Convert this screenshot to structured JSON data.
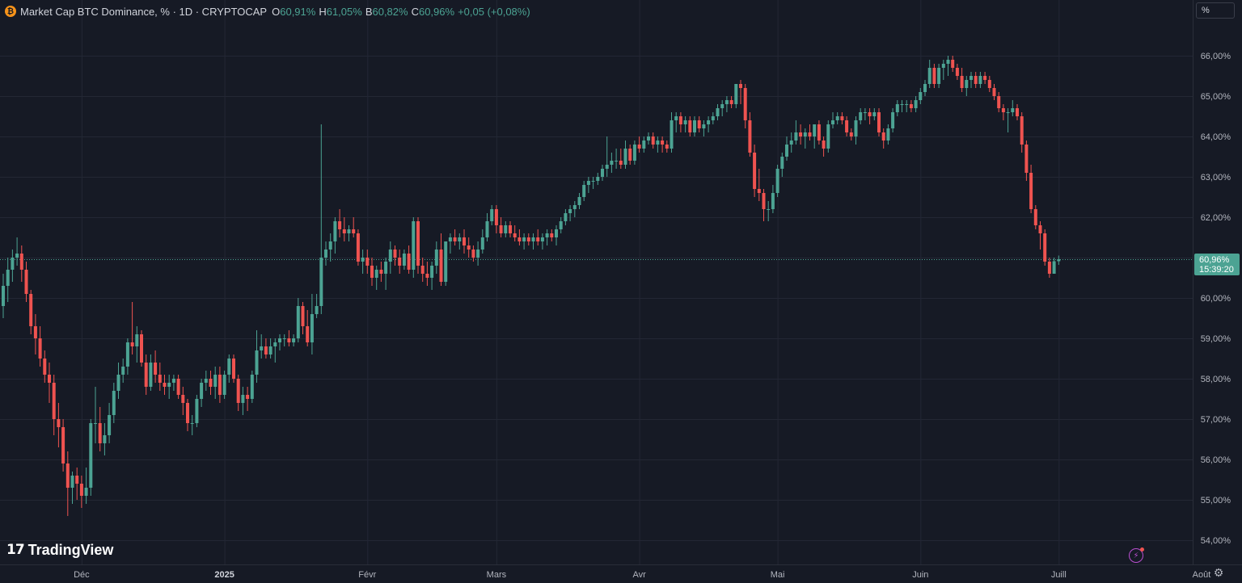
{
  "legend": {
    "title": "Market Cap BTC Dominance, % · 1D · CRYPTOCAP",
    "open_label": "O",
    "open": "60,91%",
    "high_label": "H",
    "high": "61,05%",
    "low_label": "B",
    "low": "60,82%",
    "close_label": "C",
    "close": "60,96%",
    "change": "+0,05 (+0,08%)"
  },
  "scale_button": "%",
  "logo": {
    "mark": "17",
    "name": "TradingView"
  },
  "price_label": {
    "price": "60,96%",
    "countdown": "15:39:20"
  },
  "icons": {
    "coin": "bitcoin-icon",
    "alert": "lightning-icon",
    "settings": "gear-icon",
    "logo": "tradingview-logo-icon"
  },
  "colors": {
    "up": "#4ca393",
    "down": "#ef5350",
    "background": "#161a25",
    "grid": "#232734",
    "axis_text": "#b2b5be"
  },
  "chart_data": {
    "type": "candlestick",
    "title": "Market Cap BTC Dominance, %",
    "timeframe": "1D",
    "y_tick_labels": [
      "54,00%",
      "55,00%",
      "56,00%",
      "57,00%",
      "58,00%",
      "59,00%",
      "60,00%",
      "61,00%",
      "62,00%",
      "63,00%",
      "64,00%",
      "65,00%",
      "66,00%"
    ],
    "x_tick_labels": [
      "Déc",
      "2025",
      "Févr",
      "Mars",
      "Avr",
      "Mai",
      "Juin",
      "Juill",
      "Août"
    ],
    "bold_x_tick": "2025",
    "ylim": [
      53.7,
      66.9
    ],
    "x_start": "2024-11-14",
    "grid": true,
    "last_price": 60.96,
    "ohlc": [
      [
        59.8,
        60.6,
        59.5,
        60.3
      ],
      [
        60.3,
        61.0,
        59.9,
        60.7
      ],
      [
        60.7,
        61.2,
        60.4,
        61.0
      ],
      [
        61.0,
        61.5,
        60.8,
        61.1
      ],
      [
        61.1,
        61.3,
        60.4,
        60.7
      ],
      [
        60.7,
        60.9,
        59.9,
        60.1
      ],
      [
        60.1,
        60.2,
        59.1,
        59.3
      ],
      [
        59.3,
        59.6,
        58.6,
        59.0
      ],
      [
        59.0,
        59.3,
        58.3,
        58.5
      ],
      [
        58.5,
        58.7,
        57.9,
        58.1
      ],
      [
        58.1,
        58.4,
        57.4,
        57.9
      ],
      [
        57.9,
        58.1,
        56.6,
        57.0
      ],
      [
        57.0,
        57.4,
        56.3,
        56.8
      ],
      [
        56.8,
        57.0,
        55.7,
        55.9
      ],
      [
        55.9,
        56.2,
        54.6,
        55.3
      ],
      [
        55.3,
        55.7,
        54.9,
        55.6
      ],
      [
        55.6,
        55.8,
        55.0,
        55.4
      ],
      [
        55.4,
        55.6,
        54.8,
        55.1
      ],
      [
        55.1,
        55.8,
        54.9,
        55.3
      ],
      [
        55.3,
        57.0,
        55.1,
        56.9
      ],
      [
        56.9,
        57.8,
        56.4,
        56.9
      ],
      [
        56.9,
        57.3,
        56.2,
        56.4
      ],
      [
        56.4,
        56.9,
        56.1,
        56.6
      ],
      [
        56.6,
        57.4,
        56.4,
        57.1
      ],
      [
        57.1,
        57.9,
        56.9,
        57.7
      ],
      [
        57.7,
        58.4,
        57.5,
        58.1
      ],
      [
        58.1,
        58.5,
        57.9,
        58.3
      ],
      [
        58.3,
        59.0,
        58.1,
        58.9
      ],
      [
        58.9,
        59.9,
        58.6,
        58.8
      ],
      [
        58.8,
        59.3,
        58.4,
        59.1
      ],
      [
        59.1,
        59.2,
        58.3,
        58.4
      ],
      [
        58.4,
        58.6,
        57.6,
        57.8
      ],
      [
        57.8,
        58.6,
        57.7,
        58.4
      ],
      [
        58.4,
        58.7,
        57.9,
        58.1
      ],
      [
        58.1,
        58.4,
        57.7,
        57.9
      ],
      [
        57.9,
        58.1,
        57.6,
        57.8
      ],
      [
        57.8,
        58.1,
        57.5,
        57.9
      ],
      [
        57.9,
        58.1,
        57.7,
        58.0
      ],
      [
        58.0,
        58.1,
        57.5,
        57.6
      ],
      [
        57.6,
        57.8,
        57.1,
        57.4
      ],
      [
        57.4,
        57.5,
        56.7,
        56.9
      ],
      [
        56.9,
        57.1,
        56.6,
        56.9
      ],
      [
        56.9,
        57.6,
        56.8,
        57.5
      ],
      [
        57.5,
        58.0,
        57.3,
        57.9
      ],
      [
        57.9,
        58.2,
        57.7,
        58.0
      ],
      [
        58.0,
        58.2,
        57.6,
        57.8
      ],
      [
        57.8,
        58.3,
        57.5,
        58.1
      ],
      [
        58.1,
        58.3,
        57.4,
        57.6
      ],
      [
        57.6,
        58.2,
        57.5,
        58.1
      ],
      [
        58.1,
        58.6,
        57.9,
        58.5
      ],
      [
        58.5,
        58.6,
        57.9,
        58.0
      ],
      [
        58.0,
        58.1,
        57.2,
        57.4
      ],
      [
        57.4,
        57.8,
        57.1,
        57.6
      ],
      [
        57.6,
        57.8,
        57.2,
        57.5
      ],
      [
        57.5,
        58.2,
        57.4,
        58.1
      ],
      [
        58.1,
        59.2,
        57.9,
        58.7
      ],
      [
        58.7,
        59.1,
        58.5,
        58.8
      ],
      [
        58.8,
        59.0,
        58.5,
        58.6
      ],
      [
        58.6,
        59.0,
        58.5,
        58.8
      ],
      [
        58.8,
        59.0,
        58.4,
        58.9
      ],
      [
        58.9,
        59.1,
        58.7,
        59.0
      ],
      [
        59.0,
        59.1,
        58.8,
        59.0
      ],
      [
        59.0,
        59.2,
        58.8,
        58.9
      ],
      [
        58.9,
        59.1,
        58.8,
        59.0
      ],
      [
        59.0,
        60.0,
        58.9,
        59.8
      ],
      [
        59.8,
        59.9,
        59.1,
        59.3
      ],
      [
        59.3,
        59.7,
        58.8,
        58.9
      ],
      [
        58.9,
        60.1,
        58.6,
        59.6
      ],
      [
        59.6,
        60.1,
        59.5,
        59.8
      ],
      [
        59.8,
        64.3,
        59.6,
        61.0
      ],
      [
        61.0,
        61.4,
        60.8,
        61.2
      ],
      [
        61.2,
        61.6,
        60.9,
        61.4
      ],
      [
        61.4,
        62.0,
        61.1,
        61.9
      ],
      [
        61.9,
        62.2,
        61.5,
        61.7
      ],
      [
        61.7,
        62.0,
        61.4,
        61.6
      ],
      [
        61.6,
        61.8,
        61.4,
        61.7
      ],
      [
        61.7,
        62.0,
        61.5,
        61.6
      ],
      [
        61.6,
        61.7,
        60.8,
        60.9
      ],
      [
        60.9,
        61.2,
        60.6,
        61.0
      ],
      [
        61.0,
        61.2,
        60.6,
        60.8
      ],
      [
        60.8,
        61.0,
        60.3,
        60.5
      ],
      [
        60.5,
        60.8,
        60.2,
        60.7
      ],
      [
        60.7,
        60.9,
        60.4,
        60.6
      ],
      [
        60.6,
        61.0,
        60.2,
        60.9
      ],
      [
        60.9,
        61.4,
        60.6,
        61.2
      ],
      [
        61.2,
        61.3,
        60.8,
        61.0
      ],
      [
        61.0,
        61.2,
        60.6,
        60.8
      ],
      [
        60.8,
        61.2,
        60.7,
        61.1
      ],
      [
        61.1,
        61.3,
        60.6,
        60.7
      ],
      [
        60.7,
        62.0,
        60.5,
        61.9
      ],
      [
        61.9,
        62.0,
        60.6,
        60.8
      ],
      [
        60.8,
        61.0,
        60.4,
        60.6
      ],
      [
        60.6,
        60.9,
        60.3,
        60.5
      ],
      [
        60.5,
        60.9,
        60.2,
        60.8
      ],
      [
        60.8,
        61.4,
        60.6,
        61.2
      ],
      [
        61.2,
        61.6,
        60.3,
        60.4
      ],
      [
        60.4,
        61.4,
        60.3,
        61.4
      ],
      [
        61.4,
        61.6,
        61.1,
        61.5
      ],
      [
        61.5,
        61.7,
        61.3,
        61.4
      ],
      [
        61.4,
        61.6,
        61.2,
        61.5
      ],
      [
        61.5,
        61.7,
        61.1,
        61.3
      ],
      [
        61.3,
        61.5,
        61.0,
        61.2
      ],
      [
        61.2,
        61.3,
        60.9,
        61.0
      ],
      [
        61.0,
        61.4,
        60.8,
        61.2
      ],
      [
        61.2,
        61.7,
        61.1,
        61.5
      ],
      [
        61.5,
        62.1,
        61.4,
        61.9
      ],
      [
        61.9,
        62.3,
        61.8,
        62.2
      ],
      [
        62.2,
        62.3,
        61.6,
        61.8
      ],
      [
        61.8,
        62.0,
        61.5,
        61.6
      ],
      [
        61.6,
        61.9,
        61.5,
        61.8
      ],
      [
        61.8,
        61.9,
        61.5,
        61.6
      ],
      [
        61.6,
        61.8,
        61.4,
        61.5
      ],
      [
        61.5,
        61.7,
        61.3,
        61.4
      ],
      [
        61.4,
        61.6,
        61.2,
        61.5
      ],
      [
        61.5,
        61.6,
        61.3,
        61.4
      ],
      [
        61.4,
        61.6,
        61.2,
        61.5
      ],
      [
        61.5,
        61.7,
        61.3,
        61.4
      ],
      [
        61.4,
        61.6,
        61.2,
        61.5
      ],
      [
        61.5,
        61.7,
        61.3,
        61.6
      ],
      [
        61.6,
        61.7,
        61.4,
        61.5
      ],
      [
        61.5,
        61.8,
        61.3,
        61.7
      ],
      [
        61.7,
        62.0,
        61.6,
        61.9
      ],
      [
        61.9,
        62.2,
        61.8,
        62.1
      ],
      [
        62.1,
        62.3,
        61.9,
        62.2
      ],
      [
        62.2,
        62.4,
        62.0,
        62.3
      ],
      [
        62.3,
        62.6,
        62.2,
        62.5
      ],
      [
        62.5,
        62.9,
        62.4,
        62.8
      ],
      [
        62.8,
        63.0,
        62.6,
        62.9
      ],
      [
        62.9,
        63.0,
        62.7,
        62.9
      ],
      [
        62.9,
        63.1,
        62.8,
        63.0
      ],
      [
        63.0,
        63.3,
        62.9,
        63.2
      ],
      [
        63.2,
        64.0,
        63.0,
        63.3
      ],
      [
        63.3,
        63.6,
        63.1,
        63.4
      ],
      [
        63.4,
        63.7,
        63.2,
        63.4
      ],
      [
        63.4,
        63.7,
        63.2,
        63.3
      ],
      [
        63.3,
        63.9,
        63.2,
        63.7
      ],
      [
        63.7,
        63.8,
        63.3,
        63.4
      ],
      [
        63.4,
        63.9,
        63.3,
        63.8
      ],
      [
        63.8,
        64.0,
        63.6,
        63.7
      ],
      [
        63.7,
        64.0,
        63.6,
        63.9
      ],
      [
        63.9,
        64.1,
        63.8,
        64.0
      ],
      [
        64.0,
        64.1,
        63.7,
        63.8
      ],
      [
        63.8,
        64.0,
        63.6,
        63.9
      ],
      [
        63.9,
        64.0,
        63.6,
        63.8
      ],
      [
        63.8,
        63.9,
        63.6,
        63.7
      ],
      [
        63.7,
        64.6,
        63.6,
        64.4
      ],
      [
        64.4,
        64.6,
        64.1,
        64.5
      ],
      [
        64.5,
        64.6,
        64.1,
        64.3
      ],
      [
        64.3,
        64.5,
        64.1,
        64.4
      ],
      [
        64.4,
        64.5,
        64.0,
        64.1
      ],
      [
        64.1,
        64.5,
        64.0,
        64.4
      ],
      [
        64.4,
        64.5,
        64.1,
        64.2
      ],
      [
        64.2,
        64.4,
        64.0,
        64.3
      ],
      [
        64.3,
        64.5,
        64.1,
        64.4
      ],
      [
        64.4,
        64.6,
        64.3,
        64.5
      ],
      [
        64.5,
        64.8,
        64.4,
        64.7
      ],
      [
        64.7,
        64.9,
        64.5,
        64.8
      ],
      [
        64.8,
        65.0,
        64.6,
        64.9
      ],
      [
        64.9,
        65.0,
        64.7,
        64.8
      ],
      [
        64.8,
        65.3,
        64.7,
        65.3
      ],
      [
        65.3,
        65.4,
        64.8,
        65.2
      ],
      [
        65.2,
        65.3,
        64.2,
        64.4
      ],
      [
        64.4,
        64.6,
        63.5,
        63.6
      ],
      [
        63.6,
        63.8,
        62.5,
        62.7
      ],
      [
        62.7,
        63.2,
        62.4,
        62.6
      ],
      [
        62.6,
        62.7,
        61.9,
        62.2
      ],
      [
        62.2,
        62.4,
        61.9,
        62.2
      ],
      [
        62.2,
        62.8,
        62.1,
        62.6
      ],
      [
        62.6,
        63.3,
        62.5,
        63.2
      ],
      [
        63.2,
        63.6,
        63.0,
        63.5
      ],
      [
        63.5,
        64.0,
        63.4,
        63.8
      ],
      [
        63.8,
        64.1,
        63.6,
        63.9
      ],
      [
        63.9,
        64.4,
        63.8,
        64.1
      ],
      [
        64.1,
        64.3,
        63.8,
        64.0
      ],
      [
        64.0,
        64.2,
        63.7,
        64.1
      ],
      [
        64.1,
        64.3,
        63.9,
        64.0
      ],
      [
        64.0,
        64.3,
        63.7,
        64.3
      ],
      [
        64.3,
        64.4,
        63.8,
        63.9
      ],
      [
        63.9,
        64.0,
        63.5,
        63.7
      ],
      [
        63.7,
        64.4,
        63.6,
        64.3
      ],
      [
        64.3,
        64.6,
        64.2,
        64.4
      ],
      [
        64.4,
        64.6,
        64.3,
        64.5
      ],
      [
        64.5,
        64.6,
        64.3,
        64.4
      ],
      [
        64.4,
        64.5,
        64.0,
        64.1
      ],
      [
        64.1,
        64.2,
        63.9,
        64.0
      ],
      [
        64.0,
        64.5,
        63.8,
        64.4
      ],
      [
        64.4,
        64.7,
        64.3,
        64.6
      ],
      [
        64.6,
        64.7,
        64.4,
        64.6
      ],
      [
        64.6,
        64.7,
        64.3,
        64.5
      ],
      [
        64.5,
        64.7,
        64.4,
        64.6
      ],
      [
        64.6,
        64.7,
        64.0,
        64.1
      ],
      [
        64.1,
        64.2,
        63.7,
        63.9
      ],
      [
        63.9,
        64.3,
        63.8,
        64.2
      ],
      [
        64.2,
        64.7,
        64.1,
        64.6
      ],
      [
        64.6,
        64.9,
        64.5,
        64.8
      ],
      [
        64.8,
        64.9,
        64.6,
        64.8
      ],
      [
        64.8,
        64.9,
        64.6,
        64.8
      ],
      [
        64.8,
        64.9,
        64.6,
        64.7
      ],
      [
        64.7,
        65.0,
        64.6,
        64.9
      ],
      [
        64.9,
        65.2,
        64.8,
        65.1
      ],
      [
        65.1,
        65.4,
        65.0,
        65.3
      ],
      [
        65.3,
        65.9,
        65.2,
        65.7
      ],
      [
        65.7,
        65.8,
        65.2,
        65.3
      ],
      [
        65.3,
        65.8,
        65.2,
        65.7
      ],
      [
        65.7,
        65.9,
        65.4,
        65.8
      ],
      [
        65.8,
        66.0,
        65.5,
        65.9
      ],
      [
        65.9,
        66.0,
        65.6,
        65.7
      ],
      [
        65.7,
        65.8,
        65.4,
        65.5
      ],
      [
        65.5,
        65.7,
        65.1,
        65.2
      ],
      [
        65.2,
        65.5,
        65.0,
        65.4
      ],
      [
        65.4,
        65.6,
        65.2,
        65.5
      ],
      [
        65.5,
        65.6,
        65.2,
        65.3
      ],
      [
        65.3,
        65.6,
        65.2,
        65.5
      ],
      [
        65.5,
        65.6,
        65.3,
        65.4
      ],
      [
        65.4,
        65.5,
        65.1,
        65.2
      ],
      [
        65.2,
        65.3,
        64.9,
        65.0
      ],
      [
        65.0,
        65.1,
        64.6,
        64.7
      ],
      [
        64.7,
        64.8,
        64.4,
        64.6
      ],
      [
        64.6,
        64.7,
        64.1,
        64.6
      ],
      [
        64.6,
        64.9,
        64.5,
        64.7
      ],
      [
        64.7,
        64.8,
        64.4,
        64.5
      ],
      [
        64.5,
        64.6,
        63.6,
        63.8
      ],
      [
        63.8,
        63.9,
        62.9,
        63.1
      ],
      [
        63.1,
        63.3,
        62.1,
        62.2
      ],
      [
        62.2,
        62.3,
        61.7,
        61.8
      ],
      [
        61.8,
        61.9,
        61.2,
        61.6
      ],
      [
        61.6,
        61.7,
        60.8,
        60.9
      ],
      [
        60.9,
        61.0,
        60.5,
        60.6
      ],
      [
        60.6,
        61.0,
        60.6,
        60.91
      ],
      [
        60.91,
        61.05,
        60.82,
        60.96
      ]
    ]
  }
}
